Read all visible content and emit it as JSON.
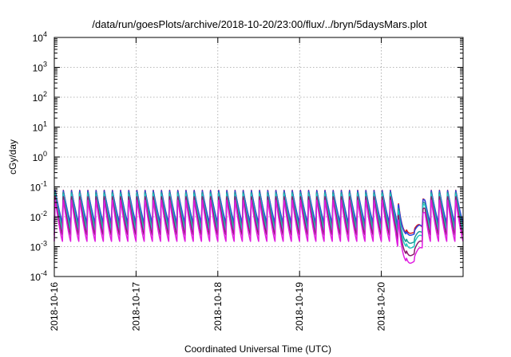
{
  "chart_data": {
    "type": "line",
    "title": "/data/run/goesPlots/archive/2018-10-20/23:00/flux/../bryn/5daysMars.plot",
    "xlabel": "Coordinated Universal Time (UTC)",
    "ylabel": "cGy/day",
    "y_scale": "log",
    "ylim": [
      0.0001,
      10000
    ],
    "xlim": [
      "2018-10-16",
      "2018-10-21"
    ],
    "x_ticks": [
      "2018-10-16",
      "2018-10-17",
      "2018-10-18",
      "2018-10-19",
      "2018-10-20"
    ],
    "y_ticks": [
      {
        "base": "10",
        "exp": "-4",
        "value": 0.0001
      },
      {
        "base": "10",
        "exp": "-3",
        "value": 0.001
      },
      {
        "base": "10",
        "exp": "-2",
        "value": 0.01
      },
      {
        "base": "10",
        "exp": "-1",
        "value": 0.1
      },
      {
        "base": "10",
        "exp": "0",
        "value": 1
      },
      {
        "base": "10",
        "exp": "1",
        "value": 10
      },
      {
        "base": "10",
        "exp": "2",
        "value": 100
      },
      {
        "base": "10",
        "exp": "3",
        "value": 1000
      },
      {
        "base": "10",
        "exp": "4",
        "value": 10000
      }
    ],
    "grid": true,
    "legend": "none",
    "pattern": {
      "kind": "periodic sawtooth (sharp rise, slow decay)",
      "cycle_days": 0.1,
      "rise_fraction": 0.08,
      "dip": {
        "center": "2018-10-20 08:30",
        "half_width_days": 0.18
      }
    },
    "series": [
      {
        "color": "#d7191c",
        "peak": 0.085,
        "trough": 0.0055,
        "dip_min": 0.0028
      },
      {
        "color": "#2b44e0",
        "peak": 0.082,
        "trough": 0.0065,
        "dip_min": 0.0024
      },
      {
        "color": "#1f9a9a",
        "peak": 0.072,
        "trough": 0.0042,
        "dip_min": 0.0013
      },
      {
        "color": "#22c8c0",
        "peak": 0.064,
        "trough": 0.0034,
        "dip_min": 0.0009
      },
      {
        "color": "#8b1a6b",
        "peak": 0.052,
        "trough": 0.0024,
        "dip_min": 0.0005
      },
      {
        "color": "#e01ee0",
        "peak": 0.04,
        "trough": 0.0015,
        "dip_min": 0.00028
      }
    ]
  }
}
